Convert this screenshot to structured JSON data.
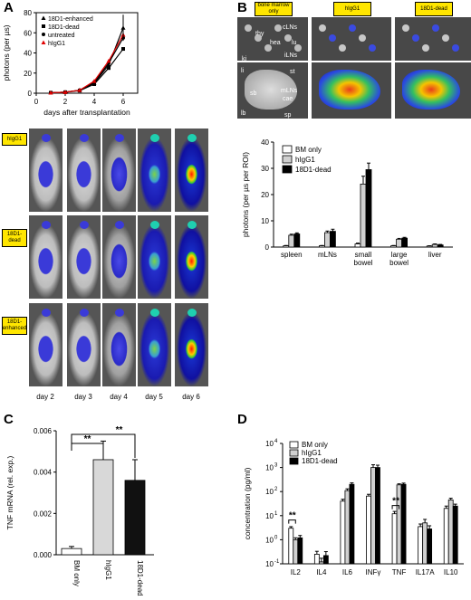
{
  "panels": {
    "a": "A",
    "b": "B",
    "c": "C",
    "d": "D"
  },
  "panel_a": {
    "legend": [
      "18D1-enhanced",
      "18D1-dead",
      "untreated",
      "hIgG1"
    ],
    "row_tags": [
      "hIgG1",
      "18D1-dead",
      "18D1-enhanced"
    ],
    "day_labels": [
      "day 2",
      "day 3",
      "day 4",
      "day 5",
      "day 6"
    ]
  },
  "panel_b": {
    "tags": [
      "bone marrow only",
      "hIgG1",
      "18D1-dead"
    ],
    "organ_labels": [
      "thy",
      "hea",
      "lu",
      "cLNs",
      "iLNs",
      "ki",
      "li",
      "st",
      "sb",
      "mLNs",
      "cae",
      "lb",
      "sp"
    ]
  },
  "chart_data": [
    {
      "id": "A",
      "type": "line",
      "xlabel": "days after transplantation",
      "ylabel": "photons (per µs)",
      "x": [
        1,
        2,
        3,
        4,
        5,
        6
      ],
      "xlim": [
        0,
        7
      ],
      "ylim": [
        0,
        80
      ],
      "xticks": [
        0,
        2,
        4,
        6
      ],
      "yticks": [
        0,
        20,
        40,
        60,
        80
      ],
      "series": [
        {
          "name": "18D1-enhanced",
          "marker": "triangle",
          "color": "#000000",
          "values": [
            0.5,
            1,
            3,
            10,
            28,
            65
          ]
        },
        {
          "name": "18D1-dead",
          "marker": "square",
          "color": "#000000",
          "values": [
            0.5,
            1,
            2.5,
            9,
            25,
            44
          ]
        },
        {
          "name": "untreated",
          "marker": "circle",
          "color": "#000000",
          "values": [
            0.5,
            1,
            3,
            11,
            30,
            55
          ]
        },
        {
          "name": "hIgG1",
          "marker": "triangle",
          "color": "#e00000",
          "values": [
            0.5,
            1,
            3,
            12,
            32,
            58
          ]
        }
      ]
    },
    {
      "id": "B",
      "type": "bar",
      "ylabel": "photons (per µs per ROI)",
      "categories": [
        "spleen",
        "mLNs",
        "small bowel",
        "large bowel",
        "liver"
      ],
      "ylim": [
        0,
        40
      ],
      "yticks": [
        0,
        10,
        20,
        30,
        40
      ],
      "legend": [
        "BM only",
        "hIgG1",
        "18D1-dead"
      ],
      "series": [
        {
          "name": "BM only",
          "color": "#ffffff",
          "values": [
            0.5,
            0.5,
            1.2,
            0.5,
            0.4
          ],
          "errors": [
            0.1,
            0.1,
            0.3,
            0.1,
            0.1
          ]
        },
        {
          "name": "hIgG1",
          "color": "#d0d0d0",
          "values": [
            4.5,
            5.5,
            24,
            3,
            1
          ],
          "errors": [
            0.4,
            0.6,
            3,
            0.3,
            0.2
          ]
        },
        {
          "name": "18D1-dead",
          "color": "#000000",
          "values": [
            5,
            6,
            29.5,
            3.4,
            0.8
          ],
          "errors": [
            0.4,
            0.8,
            2.5,
            0.3,
            0.2
          ]
        }
      ]
    },
    {
      "id": "C",
      "type": "bar",
      "ylabel": "TNF mRNA (rel. exp.)",
      "categories": [
        "BM only",
        "hIgG1",
        "18D1-dead"
      ],
      "ylim": [
        0,
        0.006
      ],
      "yticks": [
        "0.000",
        "0.002",
        "0.004",
        "0.006"
      ],
      "values": [
        0.0003,
        0.0046,
        0.0036
      ],
      "errors": [
        0.0001,
        0.0009,
        0.001
      ],
      "colors": [
        "#ffffff",
        "#d8d8d8",
        "#111111"
      ],
      "annotations": [
        "**",
        "**"
      ]
    },
    {
      "id": "D",
      "type": "bar",
      "ylabel": "concentration (pg/ml)",
      "scale": "log",
      "categories": [
        "IL2",
        "IL4",
        "IL6",
        "INFγ",
        "TNF",
        "IL17A",
        "IL10"
      ],
      "ylim_exp": [
        -1,
        4
      ],
      "ytick_exps": [
        -1,
        0,
        1,
        2,
        3,
        4
      ],
      "legend": [
        "BM only",
        "hIgG1",
        "18D1-dead"
      ],
      "annotations": [
        "**",
        "**"
      ],
      "series": [
        {
          "name": "BM only",
          "color": "#ffffff",
          "values": [
            3,
            0.25,
            40,
            65,
            12,
            3.5,
            20
          ],
          "errors": [
            0.5,
            0.08,
            8,
            12,
            3,
            1,
            5
          ]
        },
        {
          "name": "hIgG1",
          "color": "#d0d0d0",
          "values": [
            1,
            0.12,
            110,
            1000,
            190,
            5,
            45
          ],
          "errors": [
            0.2,
            0.05,
            20,
            300,
            20,
            2,
            8
          ]
        },
        {
          "name": "18D1-dead",
          "color": "#000000",
          "values": [
            1.2,
            0.22,
            200,
            1000,
            200,
            2.8,
            25
          ],
          "errors": [
            0.3,
            0.1,
            30,
            250,
            25,
            1,
            5
          ]
        }
      ]
    }
  ]
}
